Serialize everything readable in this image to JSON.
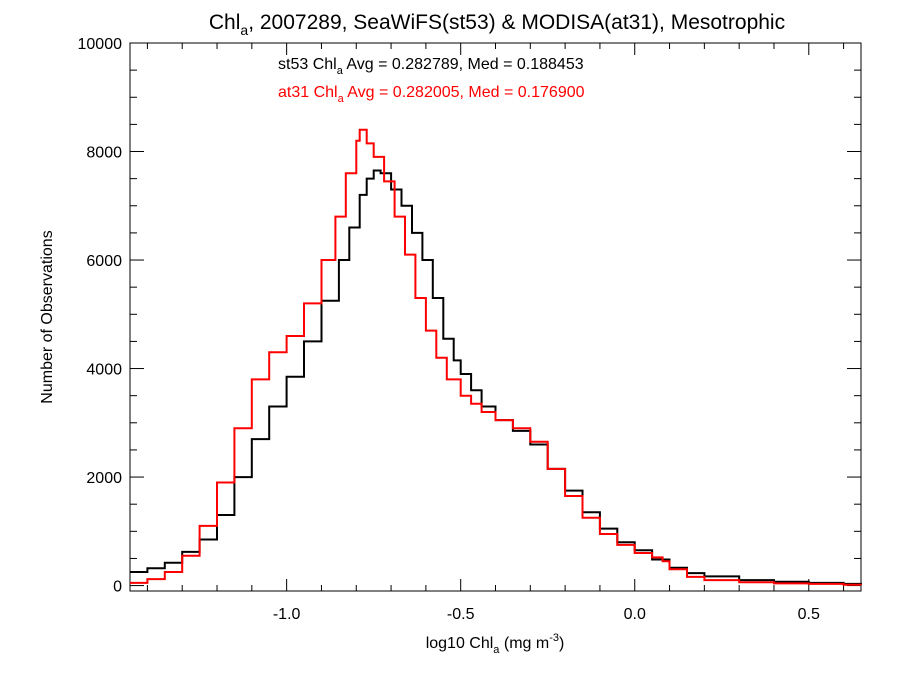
{
  "chart_data": {
    "type": "line",
    "title": {
      "prefix": "Chl",
      "sub": "a",
      "suffix": ", 2007289, SeaWiFS(st53) & MODISA(at31), Mesotrophic"
    },
    "xlabel": {
      "prefix": "log10 Chl",
      "sub": "a",
      "middle": " (mg m",
      "sup": "-3",
      "suffix": ")"
    },
    "ylabel": "Number of Observations",
    "xlim": [
      -1.45,
      0.65
    ],
    "ylim": [
      -100,
      10000
    ],
    "x_ticks": [
      {
        "value": -1.0,
        "label": "-1.0"
      },
      {
        "value": -0.5,
        "label": "-0.5"
      },
      {
        "value": 0.0,
        "label": "0.0"
      },
      {
        "value": 0.5,
        "label": "0.5"
      }
    ],
    "y_ticks": [
      {
        "value": 0,
        "label": "0"
      },
      {
        "value": 2000,
        "label": "2000"
      },
      {
        "value": 4000,
        "label": "4000"
      },
      {
        "value": 6000,
        "label": "6000"
      },
      {
        "value": 8000,
        "label": "8000"
      },
      {
        "value": 10000,
        "label": "10000"
      }
    ],
    "grid": false,
    "annotations": [
      {
        "name": "st53",
        "prefix": "st53 Chl",
        "sub": "a",
        "suffix": " Avg = 0.282789, Med = 0.188453",
        "color": "#000000"
      },
      {
        "name": "at31",
        "prefix": "at31 Chl",
        "sub": "a",
        "suffix": " Avg = 0.282005, Med = 0.176900",
        "color": "#ff0000"
      }
    ],
    "series": [
      {
        "color": "#000000",
        "points": [
          [
            -1.45,
            250
          ],
          [
            -1.4,
            320
          ],
          [
            -1.35,
            420
          ],
          [
            -1.3,
            620
          ],
          [
            -1.25,
            850
          ],
          [
            -1.2,
            1300
          ],
          [
            -1.15,
            2000
          ],
          [
            -1.1,
            2700
          ],
          [
            -1.05,
            3300
          ],
          [
            -1.0,
            3850
          ],
          [
            -0.95,
            4500
          ],
          [
            -0.9,
            5250
          ],
          [
            -0.85,
            6000
          ],
          [
            -0.82,
            6600
          ],
          [
            -0.79,
            7200
          ],
          [
            -0.77,
            7500
          ],
          [
            -0.75,
            7650
          ],
          [
            -0.73,
            7600
          ],
          [
            -0.7,
            7300
          ],
          [
            -0.67,
            7000
          ],
          [
            -0.64,
            6500
          ],
          [
            -0.61,
            6000
          ],
          [
            -0.58,
            5300
          ],
          [
            -0.55,
            4550
          ],
          [
            -0.52,
            4150
          ],
          [
            -0.5,
            3900
          ],
          [
            -0.47,
            3600
          ],
          [
            -0.44,
            3300
          ],
          [
            -0.4,
            3050
          ],
          [
            -0.35,
            2850
          ],
          [
            -0.3,
            2600
          ],
          [
            -0.25,
            2150
          ],
          [
            -0.2,
            1750
          ],
          [
            -0.15,
            1350
          ],
          [
            -0.1,
            1050
          ],
          [
            -0.05,
            800
          ],
          [
            0.0,
            650
          ],
          [
            0.05,
            480
          ],
          [
            0.1,
            330
          ],
          [
            0.15,
            230
          ],
          [
            0.2,
            170
          ],
          [
            0.3,
            100
          ],
          [
            0.4,
            70
          ],
          [
            0.5,
            50
          ],
          [
            0.6,
            30
          ],
          [
            0.65,
            20
          ]
        ]
      },
      {
        "color": "#ff0000",
        "points": [
          [
            -1.45,
            50
          ],
          [
            -1.4,
            120
          ],
          [
            -1.35,
            250
          ],
          [
            -1.3,
            550
          ],
          [
            -1.25,
            1100
          ],
          [
            -1.2,
            1900
          ],
          [
            -1.15,
            2900
          ],
          [
            -1.1,
            3800
          ],
          [
            -1.05,
            4300
          ],
          [
            -1.0,
            4600
          ],
          [
            -0.95,
            5200
          ],
          [
            -0.9,
            6000
          ],
          [
            -0.86,
            6800
          ],
          [
            -0.83,
            7600
          ],
          [
            -0.8,
            8200
          ],
          [
            -0.79,
            8400
          ],
          [
            -0.77,
            8150
          ],
          [
            -0.75,
            7900
          ],
          [
            -0.72,
            7450
          ],
          [
            -0.69,
            6800
          ],
          [
            -0.66,
            6100
          ],
          [
            -0.63,
            5300
          ],
          [
            -0.6,
            4700
          ],
          [
            -0.57,
            4200
          ],
          [
            -0.54,
            3800
          ],
          [
            -0.5,
            3500
          ],
          [
            -0.47,
            3350
          ],
          [
            -0.44,
            3200
          ],
          [
            -0.4,
            3050
          ],
          [
            -0.35,
            2900
          ],
          [
            -0.3,
            2650
          ],
          [
            -0.25,
            2150
          ],
          [
            -0.2,
            1650
          ],
          [
            -0.15,
            1250
          ],
          [
            -0.1,
            950
          ],
          [
            -0.05,
            750
          ],
          [
            0.0,
            600
          ],
          [
            0.05,
            520
          ],
          [
            0.08,
            450
          ],
          [
            0.1,
            300
          ],
          [
            0.15,
            160
          ],
          [
            0.2,
            100
          ],
          [
            0.3,
            60
          ],
          [
            0.4,
            40
          ],
          [
            0.5,
            30
          ],
          [
            0.6,
            15
          ],
          [
            0.65,
            10
          ]
        ]
      }
    ]
  }
}
